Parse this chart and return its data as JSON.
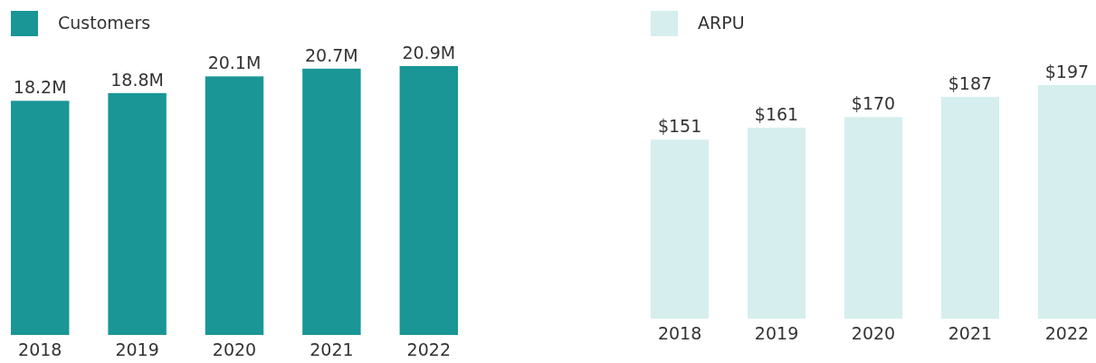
{
  "chart_data": [
    {
      "type": "bar",
      "categories": [
        "2018",
        "2019",
        "2020",
        "2021",
        "2022"
      ],
      "series": [
        {
          "name": "Customers",
          "color": "#1a9696",
          "values": [
            18.2,
            18.8,
            20.1,
            20.7,
            20.9
          ],
          "value_labels": [
            "18.2M",
            "18.8M",
            "20.1M",
            "20.7M",
            "20.9M"
          ]
        }
      ],
      "tick_labels": "x",
      "legend": "top left"
    },
    {
      "type": "bar",
      "categories": [
        "2018",
        "2019",
        "2020",
        "2021",
        "2022"
      ],
      "series": [
        {
          "name": "ARPU",
          "color": "#d6eeee",
          "values": [
            151,
            161,
            170,
            187,
            197
          ],
          "value_labels": [
            "$151",
            "$161",
            "$170",
            "$187",
            "$197"
          ]
        }
      ],
      "tick_labels": "x",
      "legend": "top left"
    }
  ]
}
